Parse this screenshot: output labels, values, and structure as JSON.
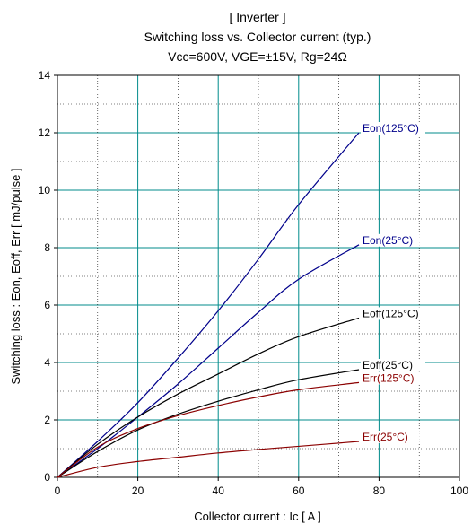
{
  "chart_data": {
    "type": "line",
    "title_lines": [
      "[ Inverter ]",
      "Switching loss  vs.  Collector current  (typ.)",
      "Vcc=600V, VGE=±15V, Rg=24Ω"
    ],
    "xlabel": "Collector current  :  Ic  [ A ]",
    "ylabel": "Switching loss  :  Eon, Eoff, Err  [ mJ/pulse ]",
    "xlim": [
      0,
      100
    ],
    "ylim": [
      0,
      14
    ],
    "x_ticks": [
      0,
      20,
      40,
      60,
      80,
      100
    ],
    "y_ticks": [
      0,
      2,
      4,
      6,
      8,
      10,
      12,
      14
    ],
    "grid": true,
    "series": [
      {
        "name": "Eon(125°C)",
        "color": "#00008b",
        "points": [
          [
            0,
            0
          ],
          [
            10,
            1.25
          ],
          [
            20,
            2.6
          ],
          [
            30,
            4.15
          ],
          [
            40,
            5.8
          ],
          [
            50,
            7.6
          ],
          [
            60,
            9.5
          ],
          [
            75,
            12.0
          ]
        ]
      },
      {
        "name": "Eon(25°C)",
        "color": "#00008b",
        "points": [
          [
            0,
            0
          ],
          [
            10,
            1.0
          ],
          [
            20,
            2.1
          ],
          [
            30,
            3.25
          ],
          [
            40,
            4.5
          ],
          [
            50,
            5.75
          ],
          [
            60,
            6.9
          ],
          [
            75,
            8.1
          ]
        ]
      },
      {
        "name": "Eoff(125°C)",
        "color": "#000000",
        "points": [
          [
            0,
            0
          ],
          [
            10,
            1.15
          ],
          [
            20,
            2.1
          ],
          [
            30,
            2.9
          ],
          [
            40,
            3.6
          ],
          [
            50,
            4.3
          ],
          [
            60,
            4.9
          ],
          [
            75,
            5.55
          ]
        ]
      },
      {
        "name": "Eoff(25°C)",
        "color": "#000000",
        "points": [
          [
            0,
            0
          ],
          [
            10,
            0.9
          ],
          [
            20,
            1.65
          ],
          [
            30,
            2.2
          ],
          [
            40,
            2.65
          ],
          [
            50,
            3.05
          ],
          [
            60,
            3.4
          ],
          [
            75,
            3.75
          ]
        ]
      },
      {
        "name": "Err(125°C)",
        "color": "#8b0000",
        "points": [
          [
            0,
            0
          ],
          [
            10,
            1.05
          ],
          [
            20,
            1.7
          ],
          [
            30,
            2.15
          ],
          [
            40,
            2.5
          ],
          [
            50,
            2.8
          ],
          [
            60,
            3.05
          ],
          [
            75,
            3.3
          ]
        ]
      },
      {
        "name": "Err(25°C)",
        "color": "#8b0000",
        "points": [
          [
            0,
            0
          ],
          [
            10,
            0.35
          ],
          [
            20,
            0.55
          ],
          [
            30,
            0.7
          ],
          [
            40,
            0.85
          ],
          [
            50,
            0.97
          ],
          [
            60,
            1.08
          ],
          [
            75,
            1.25
          ]
        ]
      }
    ]
  }
}
